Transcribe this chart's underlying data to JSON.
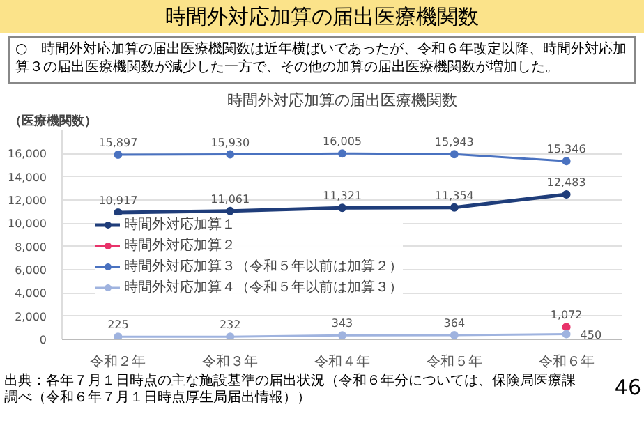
{
  "chart_data": {
    "type": "line",
    "title": "時間外対応加算の届出医療機関数",
    "subtitle": "○　時間外対応加算の届出医療機関数は近年横ばいであったが、令和６年改定以降、時間外対応加算３の届出医療機関数が減少した一方で、その他の加算の届出医療機関数が増加した。",
    "ylabel": "（医療機関数）",
    "annotations": [
      "時間外対応加算の届出医療機関数",
      "出典：各年７月１日時点の主な施設基準の届出状況（令和６年分については、保険局医療課調べ（令和６年７月１日時点厚生局届出情報））",
      "46"
    ],
    "categories": [
      "令和２年",
      "令和３年",
      "令和４年",
      "令和５年",
      "令和６年"
    ],
    "series": [
      {
        "name": "時間外対応加算１",
        "color": "#1f3d7a",
        "values": [
          10917,
          11061,
          11321,
          11354,
          12483
        ],
        "value_labels": [
          "10,917",
          "11,061",
          "11,321",
          "11,354",
          "12,483"
        ]
      },
      {
        "name": "時間外対応加算２",
        "color": "#e8336a",
        "values": [
          null,
          null,
          null,
          null,
          1072
        ],
        "value_labels": [
          null,
          null,
          null,
          null,
          "1,072"
        ]
      },
      {
        "name": "時間外対応加算３（令和５年以前は加算２）",
        "color": "#4a72c0",
        "values": [
          15897,
          15930,
          16005,
          15943,
          15346
        ],
        "value_labels": [
          "15,897",
          "15,930",
          "16,005",
          "15,943",
          "15,346"
        ]
      },
      {
        "name": "時間外対応加算４（令和５年以前は加算３）",
        "color": "#9fb3df",
        "values": [
          225,
          232,
          343,
          364,
          450
        ],
        "value_labels": [
          "225",
          "232",
          "343",
          "364",
          "450"
        ]
      }
    ],
    "ylim": [
      0,
      18000
    ],
    "yticks": [
      0,
      {
        "value": 2000,
        "label": "2,000"
      },
      {
        "value": 4000,
        "label": "4,000"
      },
      {
        "value": 6000,
        "label": "6,000"
      },
      {
        "value": 8000,
        "label": "8,000"
      },
      {
        "value": 10000,
        "label": "10,000"
      },
      {
        "value": 12000,
        "label": "12,000"
      },
      {
        "value": 14000,
        "label": "14,000"
      },
      {
        "value": 16000,
        "label": "16,000"
      }
    ],
    "grid": "y",
    "legend": "center",
    "marker": "circle",
    "line_style": "solid"
  }
}
